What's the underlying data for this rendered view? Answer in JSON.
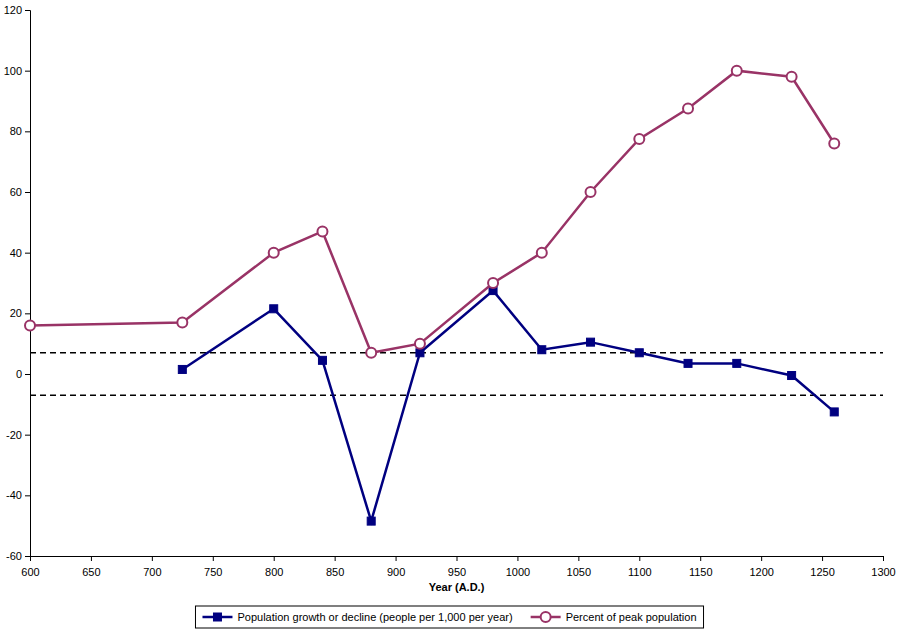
{
  "chart_data": {
    "type": "line",
    "x_label": "Year (A.D.)",
    "x": [
      600,
      725,
      800,
      840,
      880,
      920,
      980,
      1020,
      1060,
      1100,
      1140,
      1180,
      1225,
      1260
    ],
    "series": [
      {
        "name": "Population growth or decline (people per 1,000 per year)",
        "color": "#000080",
        "marker": "square",
        "values": [
          null,
          1.5,
          21.5,
          4.5,
          -48.5,
          7,
          27.5,
          8,
          10.5,
          7,
          3.5,
          3.5,
          -0.5,
          -12.5
        ]
      },
      {
        "name": "Percent of peak population",
        "color": "#993366",
        "marker": "circle",
        "values": [
          16,
          17,
          40,
          47,
          7,
          10,
          30,
          40,
          60,
          77.5,
          87.5,
          100,
          98,
          76
        ]
      }
    ],
    "reference_lines": [
      7,
      -7
    ],
    "xlim": [
      600,
      1300
    ],
    "xticks": [
      600,
      650,
      700,
      750,
      800,
      850,
      900,
      950,
      1000,
      1050,
      1100,
      1150,
      1200,
      1250,
      1300
    ],
    "ylim": [
      -60,
      120
    ],
    "yticks": [
      -60,
      -40,
      -20,
      0,
      20,
      40,
      60,
      80,
      100,
      120
    ],
    "grid": false,
    "legend": "bottom"
  }
}
